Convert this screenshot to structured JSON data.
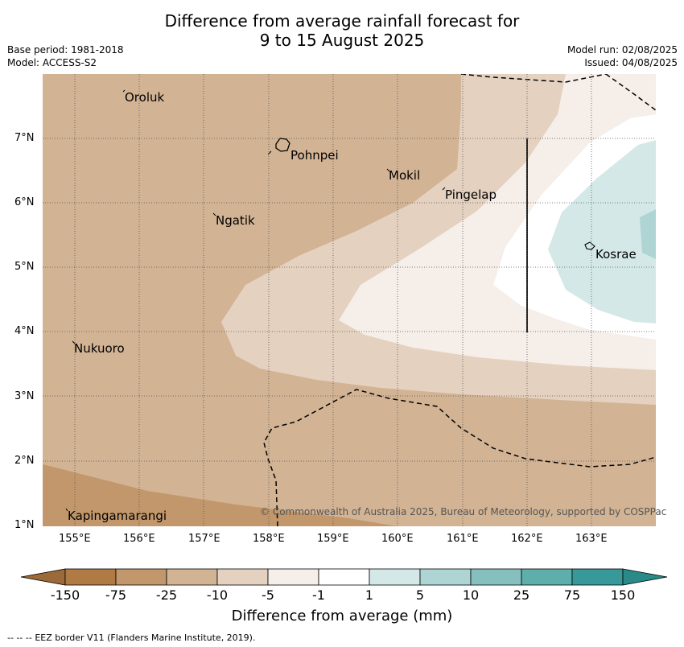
{
  "header": {
    "title_line1": "Difference from average rainfall forecast for",
    "title_line2": "9 to 15 August 2025",
    "base_period": "Base period: 1981-2018",
    "model": "Model: ACCESS-S2",
    "model_run": "Model run: 02/08/2025",
    "issued": "Issued: 04/08/2025"
  },
  "map": {
    "lon_ticks": [
      "155°E",
      "156°E",
      "157°E",
      "158°E",
      "159°E",
      "160°E",
      "161°E",
      "162°E",
      "163°E"
    ],
    "lat_ticks": [
      "7°N",
      "6°N",
      "5°N",
      "4°N",
      "3°N",
      "2°N",
      "1°N"
    ],
    "places": [
      "Oroluk",
      "Pohnpei",
      "Mokil",
      "Pingelap",
      "Ngatik",
      "Kosrae",
      "Nukuoro",
      "Kapingamarangi"
    ],
    "copyright": "© Commonwealth of Australia 2025, Bureau of Meteorology, supported by COSPPac"
  },
  "colorbar": {
    "labels": [
      "-150",
      "-75",
      "-25",
      "-10",
      "-5",
      "-1",
      "1",
      "5",
      "10",
      "25",
      "75",
      "150"
    ],
    "colors": [
      "#b07a44",
      "#c1976b",
      "#d2b394",
      "#e4d1c0",
      "#f5eee9",
      "#ffffff",
      "#d5e8e8",
      "#aed4d4",
      "#85c0be",
      "#5eaeab",
      "#37999a"
    ],
    "low_extend_color": "#9c6a38",
    "high_extend_color": "#2a8a88",
    "title": "Difference from average (mm)"
  },
  "footer": {
    "legend_text": "EEZ border V11 (Flanders Marine Institute, 2019)."
  }
}
